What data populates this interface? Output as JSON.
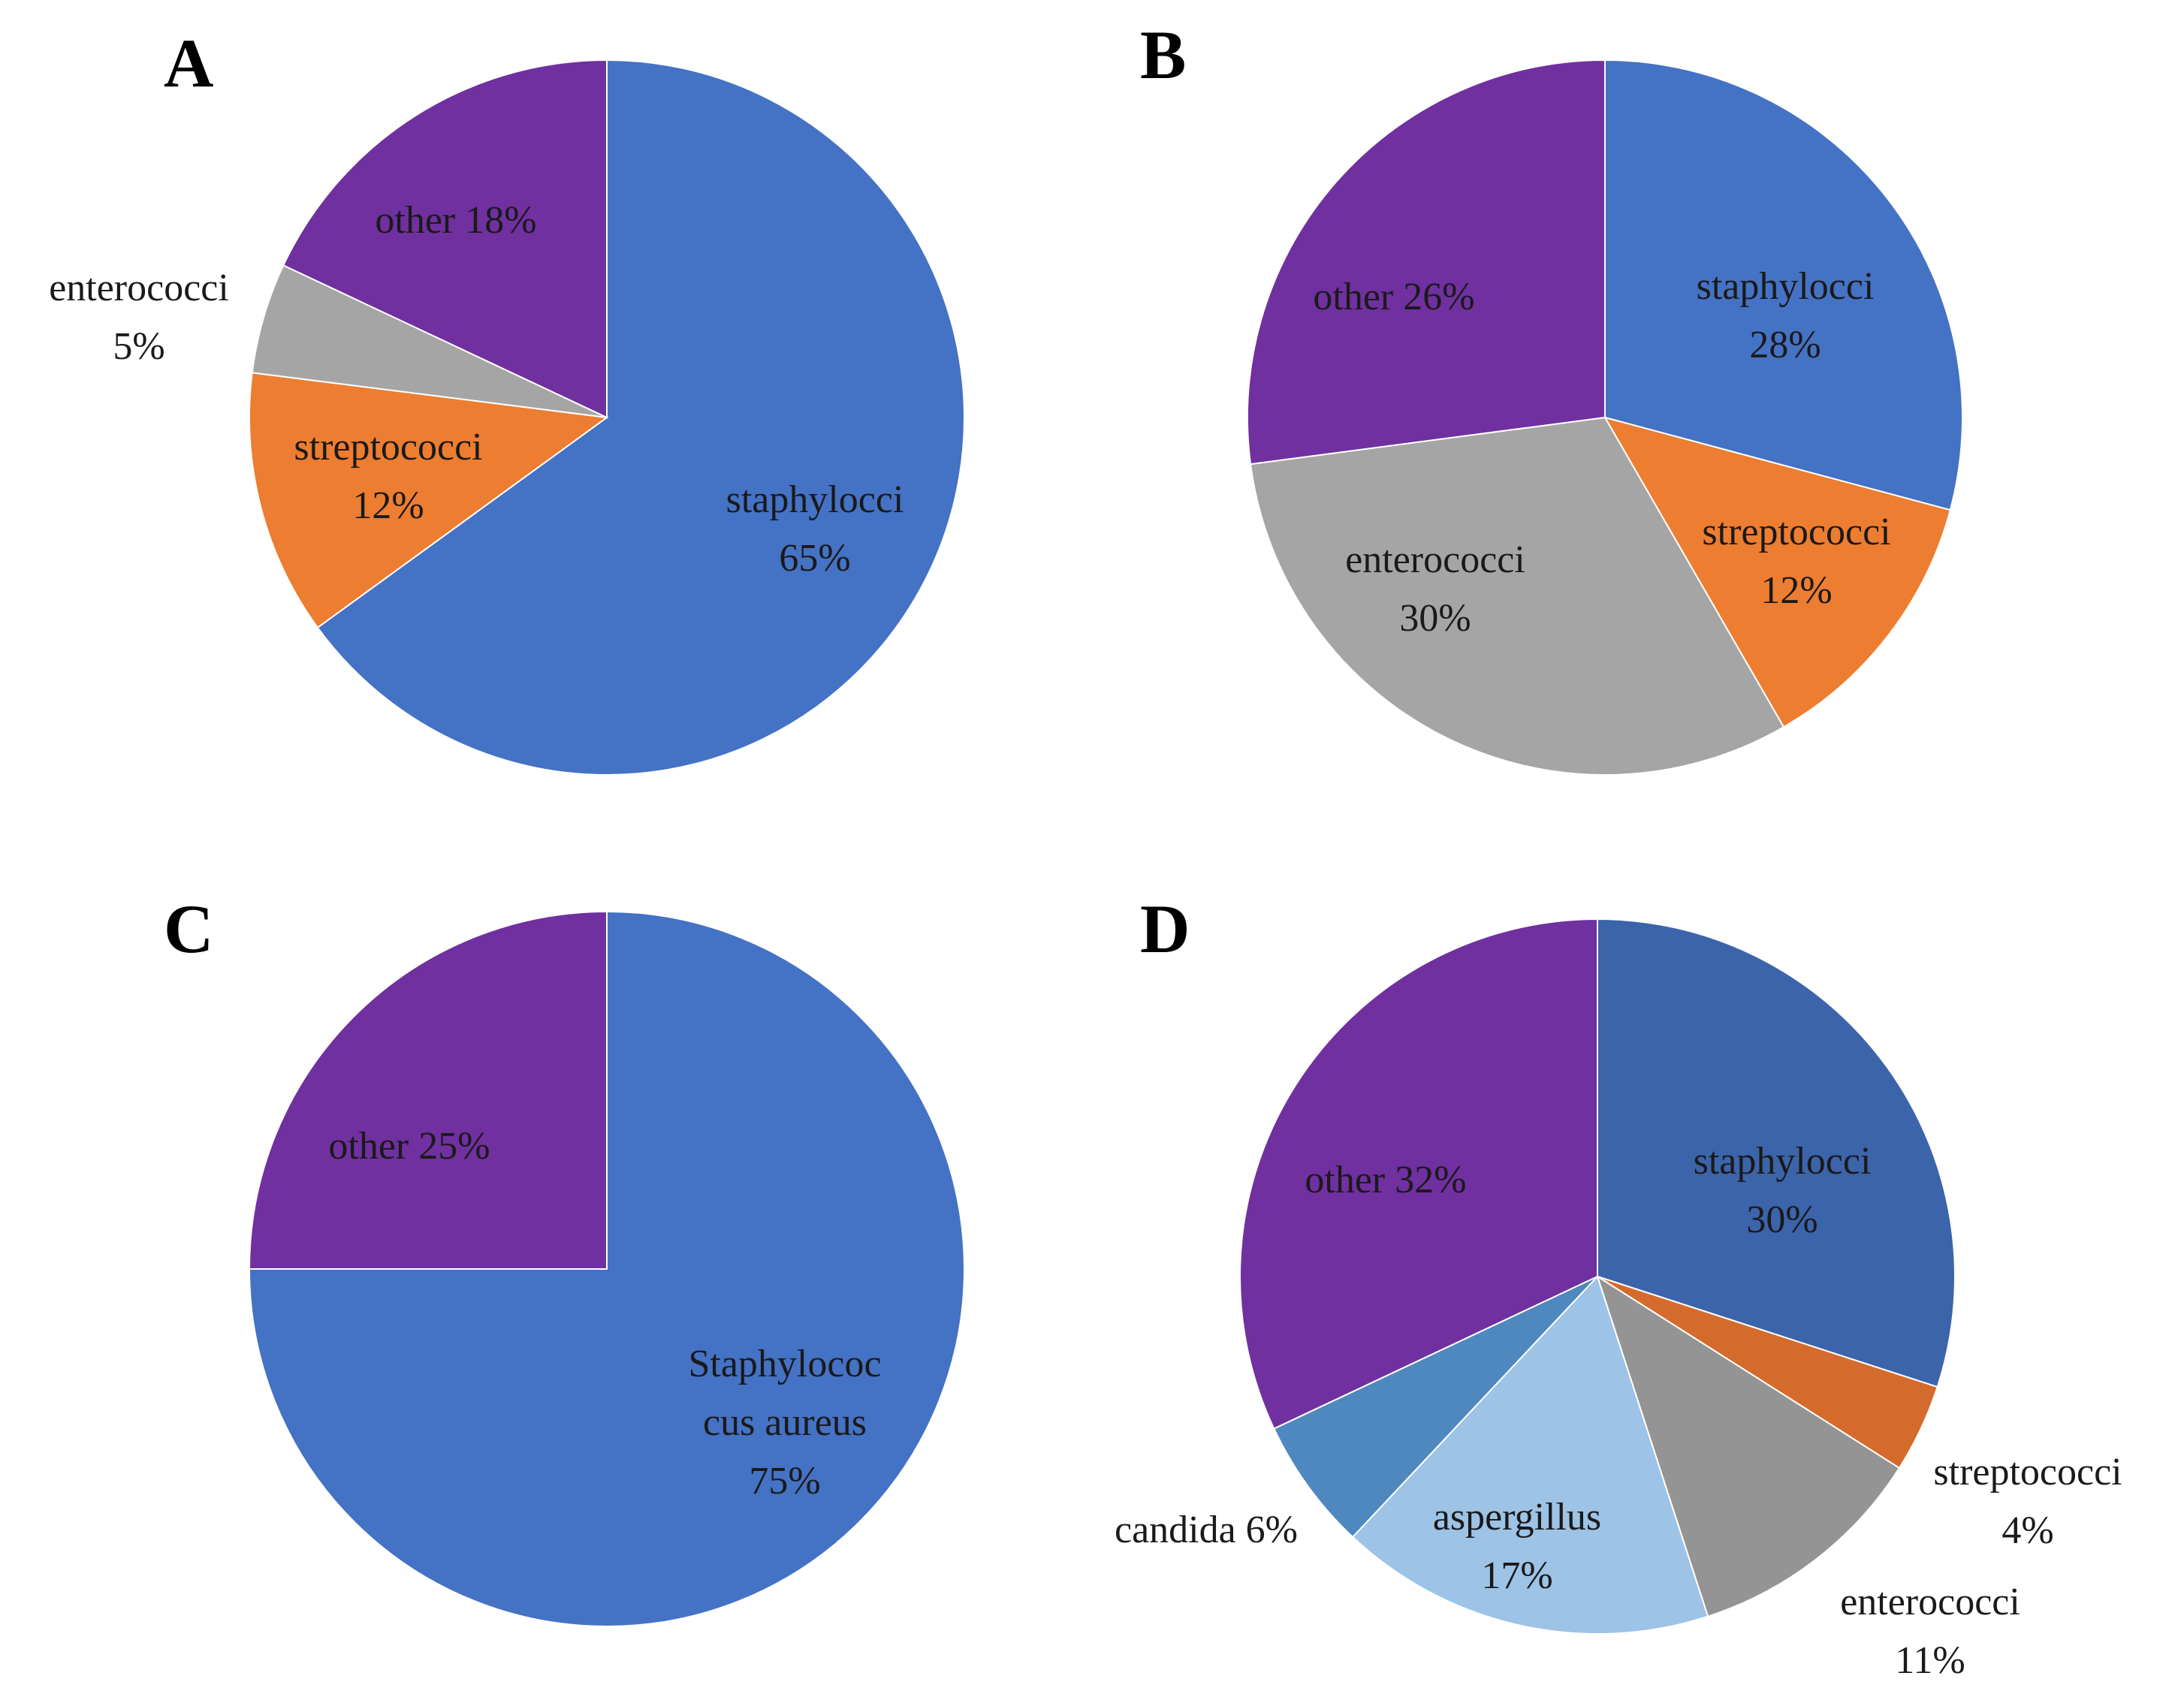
{
  "chart_data": [
    {
      "type": "pie",
      "panel": "A",
      "slices": [
        {
          "label": "staphylocci",
          "value": 65,
          "pct_text": "65%",
          "color": "#4472C4"
        },
        {
          "label": "streptococci",
          "value": 12,
          "pct_text": "12%",
          "color": "#ED7D31"
        },
        {
          "label": "enterococci",
          "value": 5,
          "pct_text": "5%",
          "color": "#A5A5A5"
        },
        {
          "label": "other",
          "value": 18,
          "pct_text": "18%",
          "color": "#7030A0"
        }
      ]
    },
    {
      "type": "pie",
      "panel": "B",
      "slices": [
        {
          "label": "staphylocci",
          "value": 28,
          "pct_text": "28%",
          "color": "#4472C4"
        },
        {
          "label": "streptococci",
          "value": 12,
          "pct_text": "12%",
          "color": "#ED7D31"
        },
        {
          "label": "enterococci",
          "value": 30,
          "pct_text": "30%",
          "color": "#A5A5A5"
        },
        {
          "label": "other",
          "value": 26,
          "pct_text": "26%",
          "color": "#7030A0"
        }
      ]
    },
    {
      "type": "pie",
      "panel": "C",
      "slices": [
        {
          "label": "Staphylococcus aureus",
          "value": 75,
          "pct_text": "75%",
          "color": "#4472C4"
        },
        {
          "label": "other",
          "value": 25,
          "pct_text": "25%",
          "color": "#7030A0"
        }
      ]
    },
    {
      "type": "pie",
      "panel": "D",
      "slices": [
        {
          "label": "staphylocci",
          "value": 30,
          "pct_text": "30%",
          "color": "#3C64AA"
        },
        {
          "label": "streptococci",
          "value": 4,
          "pct_text": "4%",
          "color": "#D46B2C"
        },
        {
          "label": "enterococci",
          "value": 11,
          "pct_text": "11%",
          "color": "#949494"
        },
        {
          "label": "aspergillus",
          "value": 17,
          "pct_text": "17%",
          "color": "#9DC3E6"
        },
        {
          "label": "candida",
          "value": 6,
          "pct_text": "6%",
          "color": "#4E88BE"
        },
        {
          "label": "other",
          "value": 32,
          "pct_text": "32%",
          "color": "#7030A0"
        }
      ]
    }
  ],
  "labels": {
    "A": {
      "letter": "A",
      "other": "other 18%",
      "enterococci_1": "enterococci",
      "enterococci_2": "5%",
      "streptococci_1": "streptococci",
      "streptococci_2": "12%",
      "staphylocci_1": "staphylocci",
      "staphylocci_2": "65%"
    },
    "B": {
      "letter": "B",
      "other": "other 26%",
      "staphylocci_1": "staphylocci",
      "staphylocci_2": "28%",
      "enterococci_1": "enterococci",
      "enterococci_2": "30%",
      "streptococci_1": "streptococci",
      "streptococci_2": "12%"
    },
    "C": {
      "letter": "C",
      "other": "other 25%",
      "staph_1": "Staphylococ",
      "staph_2": "cus aureus",
      "staph_3": "75%"
    },
    "D": {
      "letter": "D",
      "other": "other 32%",
      "staphylocci_1": "staphylocci",
      "staphylocci_2": "30%",
      "streptococci_1": "streptococci",
      "streptococci_2": "4%",
      "enterococci_1": "enterococci",
      "enterococci_2": "11%",
      "aspergillus_1": "aspergillus",
      "aspergillus_2": "17%",
      "candida": "candida 6%"
    }
  }
}
